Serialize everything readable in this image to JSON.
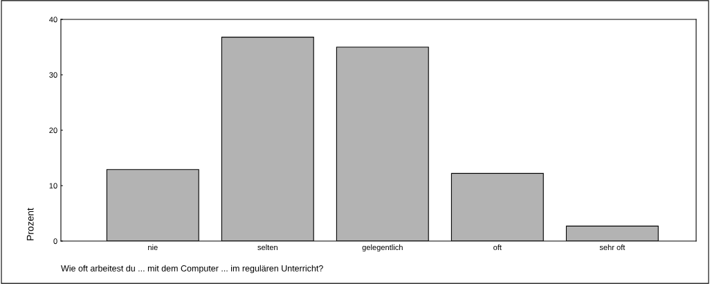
{
  "chart_data": {
    "type": "bar",
    "xlabel": "Wie oft arbeitest du ... mit dem Computer ... im regulären Unterricht?",
    "ylabel": "Prozent",
    "categories": [
      "nie",
      "selten",
      "gelegentlich",
      "oft",
      "sehr oft"
    ],
    "values": [
      12.9,
      36.8,
      35.0,
      12.2,
      2.7
    ],
    "color": "#b3b3b3",
    "ylim": [
      0,
      40
    ],
    "yticks": [
      0,
      10,
      20,
      30,
      40
    ],
    "grid": false,
    "legend": false
  }
}
